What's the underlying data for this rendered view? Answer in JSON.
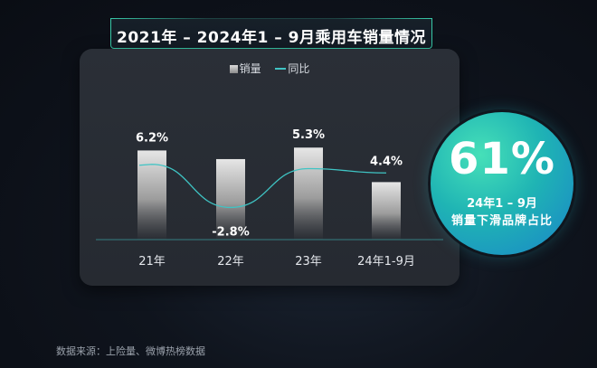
{
  "title": "2021年 – 2024年1 – 9月乘用车销量情况",
  "legend": {
    "bar_label": "销量",
    "line_label": "同比"
  },
  "colors": {
    "accent_teal": "#3fc4c4",
    "border_green": "#38c9a8",
    "circle_start": "#46e0b8",
    "circle_end": "#1a84c9"
  },
  "chart_data": {
    "type": "bar",
    "categories": [
      "21年",
      "22年",
      "23年",
      "24年1-9月"
    ],
    "series": [
      {
        "name": "同比",
        "type": "line",
        "values": [
          6.2,
          -2.8,
          5.3,
          4.4
        ],
        "labels": [
          "6.2%",
          "-2.8%",
          "5.3%",
          "4.4%"
        ]
      }
    ],
    "bar_relative_heights": [
      0.93,
      0.84,
      0.96,
      0.6
    ],
    "grid": false
  },
  "highlight": {
    "value": "61%",
    "line1": "24年1 – 9月",
    "line2": "销量下滑品牌占比"
  },
  "source": "数据来源：上险量、微博热榜数据"
}
